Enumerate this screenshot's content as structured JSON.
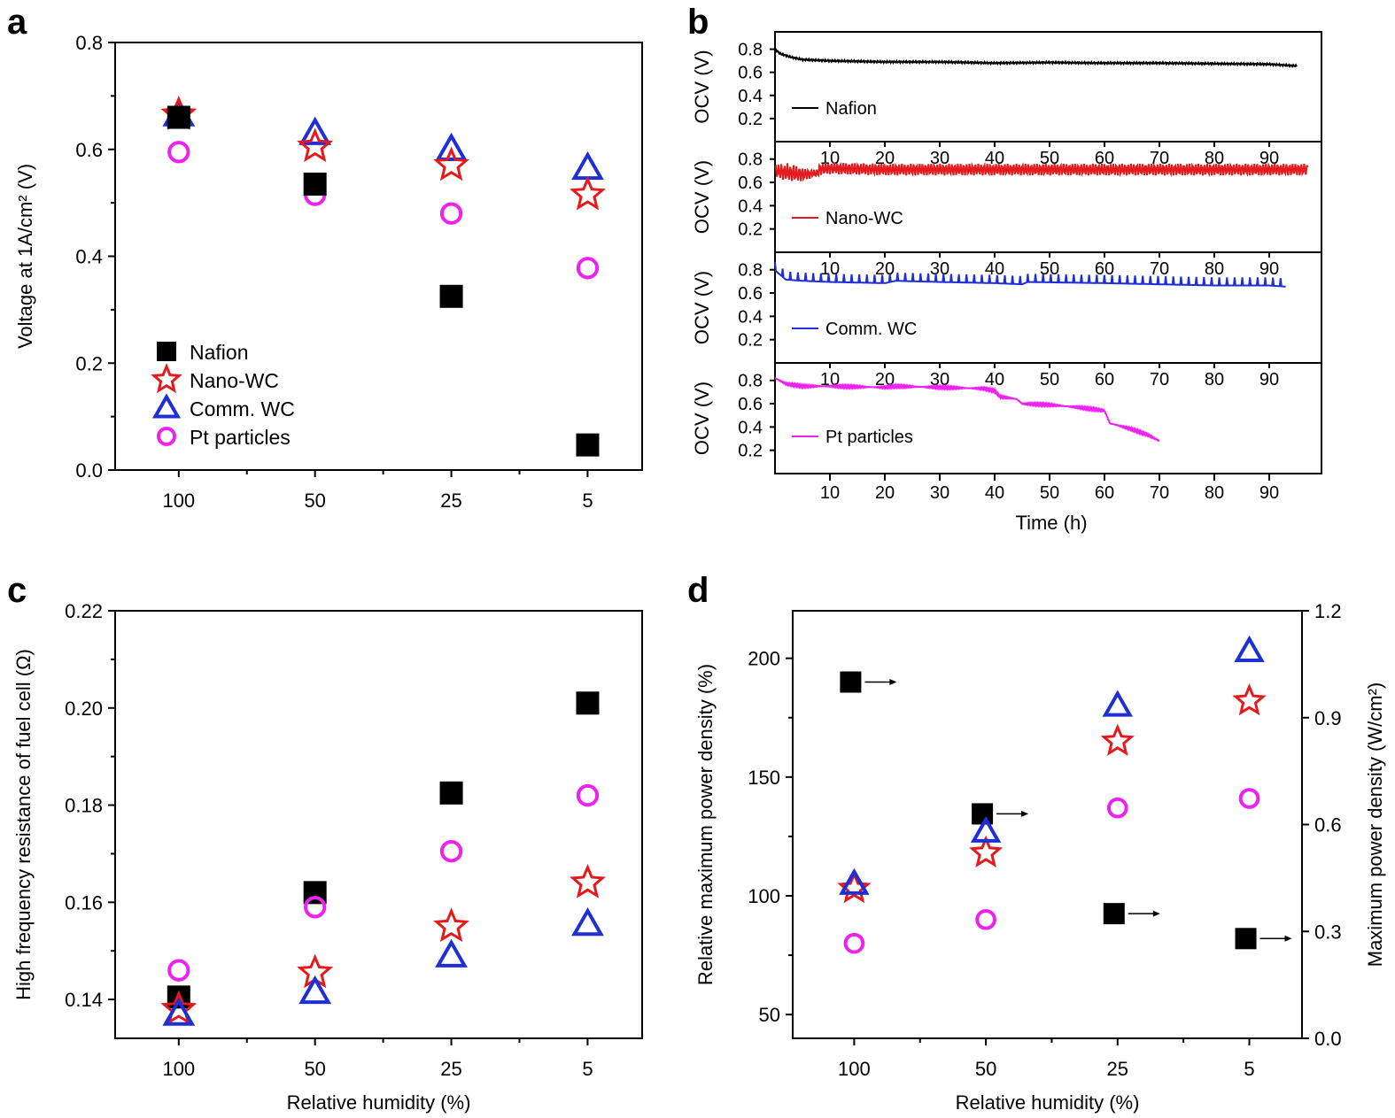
{
  "chart_data": [
    {
      "panel": "a",
      "type": "scatter",
      "categories": [
        "100",
        "50",
        "25",
        "5"
      ],
      "xlabel": "",
      "ylabel": "Voltage at 1A/cm² (V)",
      "ylim": [
        0,
        0.8
      ],
      "yticks": [
        "0.0",
        "0.2",
        "0.4",
        "0.6",
        "0.8"
      ],
      "legend_position": "bottom-left",
      "series": [
        {
          "name": "Nafion",
          "marker": "square",
          "color": "#000000",
          "values": [
            0.66,
            0.535,
            0.325,
            0.047
          ]
        },
        {
          "name": "Nano-WC",
          "marker": "star",
          "color": "#e41a1c",
          "values": [
            0.665,
            0.605,
            0.57,
            0.515
          ]
        },
        {
          "name": "Comm. WC",
          "marker": "triangle",
          "color": "#1f2fd6",
          "values": [
            0.665,
            0.63,
            0.6,
            0.565
          ]
        },
        {
          "name": "Pt particles",
          "marker": "circle",
          "color": "#ee22ee",
          "values": [
            0.595,
            0.515,
            0.48,
            0.378
          ]
        }
      ]
    },
    {
      "panel": "b",
      "type": "line",
      "xlabel": "Time (h)",
      "ylabel": "OCV (V)",
      "xlim": [
        0,
        100
      ],
      "xticks": [
        "10",
        "20",
        "30",
        "40",
        "50",
        "60",
        "70",
        "80",
        "90"
      ],
      "yticks": [
        "0.2",
        "0.4",
        "0.6",
        "0.8"
      ],
      "ylim": [
        0,
        0.95
      ],
      "series": [
        {
          "name": "Nafion",
          "color": "#000000",
          "t_end": 95,
          "x": [
            0,
            1,
            3,
            5,
            10,
            20,
            30,
            40,
            50,
            60,
            70,
            80,
            90,
            95
          ],
          "y": [
            0.8,
            0.76,
            0.73,
            0.71,
            0.7,
            0.69,
            0.69,
            0.68,
            0.685,
            0.68,
            0.68,
            0.675,
            0.67,
            0.655
          ]
        },
        {
          "name": "Nano-WC",
          "color": "#e41a1c",
          "t_end": 97,
          "x": [
            0,
            5,
            10,
            20,
            30,
            40,
            50,
            60,
            70,
            80,
            90,
            97
          ],
          "y": [
            0.73,
            0.7,
            0.72,
            0.71,
            0.71,
            0.71,
            0.71,
            0.71,
            0.71,
            0.71,
            0.71,
            0.71
          ]
        },
        {
          "name": "Comm. WC",
          "color": "#1f2fd6",
          "t_end": 93,
          "x": [
            0,
            2,
            5,
            10,
            20,
            22,
            30,
            40,
            45,
            46,
            60,
            70,
            80,
            90,
            93
          ],
          "y": [
            0.8,
            0.72,
            0.71,
            0.7,
            0.69,
            0.71,
            0.7,
            0.69,
            0.68,
            0.7,
            0.69,
            0.68,
            0.67,
            0.67,
            0.66
          ]
        },
        {
          "name": "Pt particles",
          "color": "#ee22ee",
          "t_end": 70,
          "x": [
            0,
            2,
            5,
            10,
            20,
            22,
            30,
            38,
            40,
            41,
            44,
            45,
            50,
            55,
            60,
            61,
            62,
            65,
            68,
            70
          ],
          "y": [
            0.82,
            0.77,
            0.75,
            0.75,
            0.74,
            0.75,
            0.74,
            0.73,
            0.71,
            0.66,
            0.64,
            0.6,
            0.59,
            0.57,
            0.54,
            0.43,
            0.42,
            0.38,
            0.33,
            0.28
          ]
        }
      ]
    },
    {
      "panel": "c",
      "type": "scatter",
      "categories": [
        "100",
        "50",
        "25",
        "5"
      ],
      "xlabel": "Relative humidity (%)",
      "ylabel": "High frequency resistance of fuel cell (Ω)",
      "ylim": [
        0.132,
        0.22
      ],
      "yticks": [
        "0.14",
        "0.16",
        "0.18",
        "0.20",
        "0.22"
      ],
      "series": [
        {
          "name": "Nafion",
          "marker": "square",
          "color": "#000000",
          "values": [
            0.1405,
            0.162,
            0.1825,
            0.201
          ]
        },
        {
          "name": "Nano-WC",
          "marker": "star",
          "color": "#e41a1c",
          "values": [
            0.138,
            0.1455,
            0.155,
            0.164
          ]
        },
        {
          "name": "Comm. WC",
          "marker": "triangle",
          "color": "#1f2fd6",
          "values": [
            0.137,
            0.1415,
            0.149,
            0.1555
          ]
        },
        {
          "name": "Pt particles",
          "marker": "circle",
          "color": "#ee22ee",
          "values": [
            0.146,
            0.159,
            0.1705,
            0.182
          ]
        }
      ]
    },
    {
      "panel": "d",
      "type": "scatter",
      "categories": [
        "100",
        "50",
        "25",
        "5"
      ],
      "xlabel": "Relative humidity (%)",
      "ylabel": "Relative maximum power density (%)",
      "ylabel_right": "Maximum power density (W/cm²)",
      "ylim": [
        40,
        220
      ],
      "ylim_right": [
        0,
        1.2
      ],
      "yticks": [
        "50",
        "100",
        "150",
        "200"
      ],
      "yticks_right": [
        "0.0",
        "0.3",
        "0.6",
        "0.9",
        "1.2"
      ],
      "series": [
        {
          "name": "Nafion",
          "marker": "square",
          "color": "#000000",
          "axis": "right",
          "values": [
            1.0,
            0.63,
            0.35,
            0.28
          ]
        },
        {
          "name": "Nano-WC",
          "marker": "star",
          "color": "#e41a1c",
          "axis": "left",
          "values": [
            103,
            118,
            165,
            182
          ]
        },
        {
          "name": "Comm. WC",
          "marker": "triangle",
          "color": "#1f2fd6",
          "axis": "left",
          "values": [
            105,
            127,
            180,
            203
          ]
        },
        {
          "name": "Pt particles",
          "marker": "circle",
          "color": "#ee22ee",
          "axis": "left",
          "values": [
            80,
            90,
            137,
            141
          ]
        }
      ]
    }
  ]
}
